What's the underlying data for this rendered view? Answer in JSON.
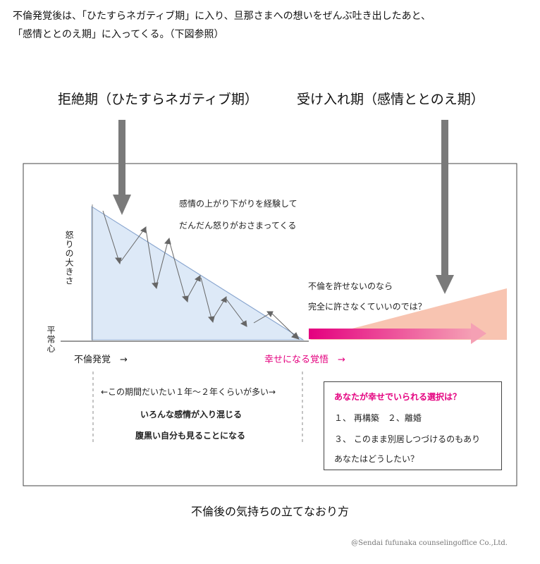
{
  "intro": {
    "line1": "不倫発覚後は、「ひたすらネガティブ期」に入り、旦那さまへの想いをぜんぶ吐き出したあと、",
    "line2": "「感情ととのえ期」に入ってくる。（下図参照）"
  },
  "phases": {
    "rejection": "拒絶期（ひたすらネガティブ期）",
    "acceptance": "受け入れ期（感情ととのえ期）"
  },
  "axis": {
    "y_label": "怒りの大きさ",
    "baseline_label": "平常心",
    "start_label": "不倫発覚　→",
    "resolve_label": "幸せになる覚悟　→"
  },
  "annotations": {
    "ups_downs_1": "感情の上がり下がりを経験して",
    "ups_downs_2": "だんだん怒りがおさまってくる",
    "unforgivable_1": "不倫を許せないのなら",
    "unforgivable_2": "完全に許さなくていいのでは？",
    "period": "←この期間だいたい１年〜２年くらいが多い→",
    "mixed_feelings": "いろんな感情が入り混じる",
    "dark_side": "腹黒い自分も見ることになる"
  },
  "choices": {
    "title": "あなたが幸せでいられる選択は？",
    "line1": "１、 再構築　２、離婚",
    "line2": "３、 このまま別居しつづけるのもあり",
    "line3": "あなたはどうしたい？"
  },
  "caption": "不倫後の気持ちの立てなおり方",
  "copyright": "@Sendai fufunaka counselingoffice Co.,Ltd.",
  "colors": {
    "triangle_fill": "#dde9f7",
    "triangle_stroke": "#9db7da",
    "salmon": "#f8c4b1",
    "pink": "#e4007f",
    "arrow_gray": "#7a7a7a"
  }
}
